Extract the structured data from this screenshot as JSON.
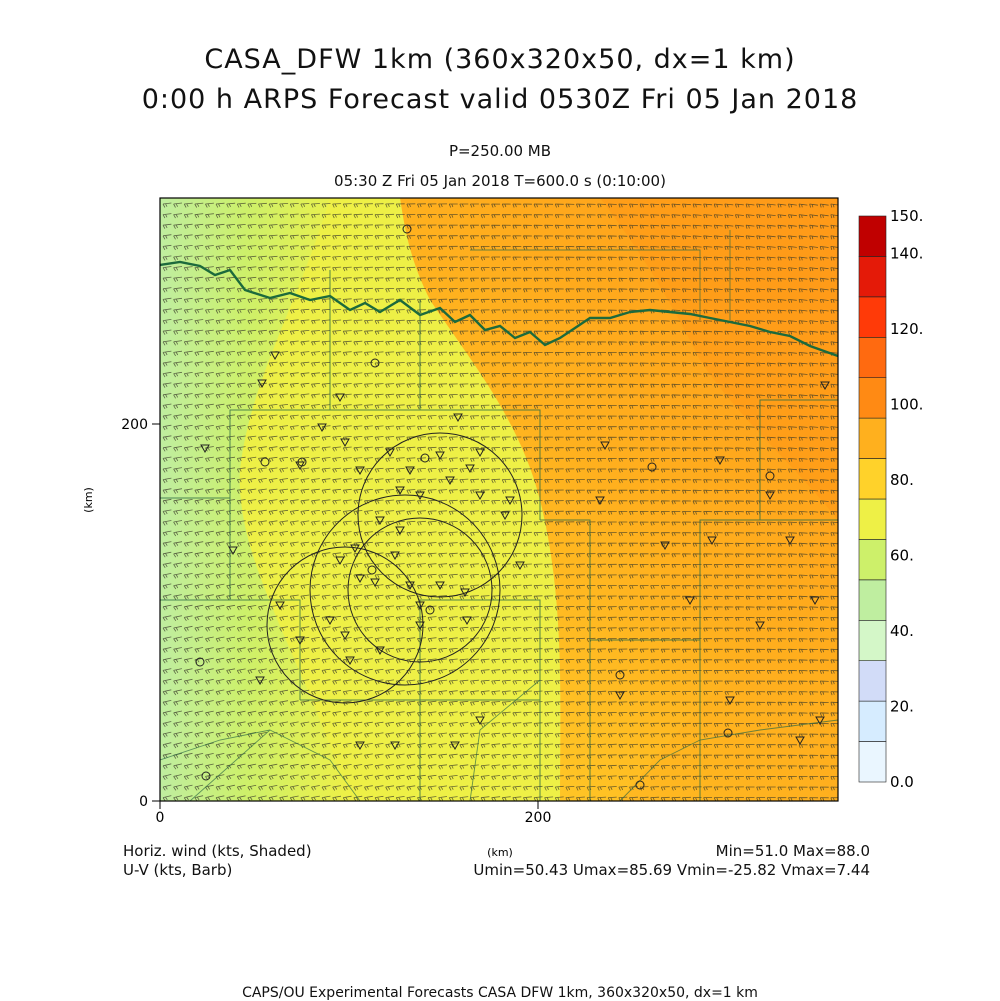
{
  "header": {
    "title_line1": "CASA_DFW 1km (360x320x50, dx=1 km)",
    "title_line2": "0:00 h ARPS Forecast valid 0530Z Fri 05 Jan 2018",
    "level": "P=250.00 MB",
    "time": "05:30 Z Fri 05 Jan 2018    T=600.0 s (0:10:00)"
  },
  "axes": {
    "x_ticks": [
      "0",
      "200"
    ],
    "y_ticks": [
      "0",
      "200"
    ],
    "x_label": "(km)",
    "y_label": "(km)"
  },
  "colorbar": {
    "labels": [
      "0.0",
      "20.",
      "40.",
      "60.",
      "80.",
      "100.",
      "120.",
      "140.",
      "150."
    ],
    "colors": [
      "#eaf6ff",
      "#d6ecff",
      "#d2dcf8",
      "#d4f7c8",
      "#bfeea0",
      "#cdf06a",
      "#eef046",
      "#ffd22a",
      "#ffb01e",
      "#ff8a14",
      "#ff6a10",
      "#ff3a08",
      "#e41a08",
      "#c00000"
    ]
  },
  "footer": {
    "field1": "Horiz. wind (kts, Shaded)",
    "field2": "U-V (kts, Barb)",
    "stats1": "Min=51.0 Max=88.0",
    "stats2": "Umin=50.43 Umax=85.69 Vmin=-25.82 Vmax=7.44",
    "bottom": "CAPS/OU Experimental Forecasts   CASA DFW 1km, 360x320x50, dx=1 km"
  },
  "chart_data": {
    "type": "heatmap",
    "variable": "Horiz. wind (kts, Shaded)",
    "value_range": [
      51.0,
      88.0
    ],
    "colorbar_range": [
      0,
      150
    ],
    "x_range_km": [
      0,
      360
    ],
    "y_range_km": [
      0,
      320
    ]
  }
}
